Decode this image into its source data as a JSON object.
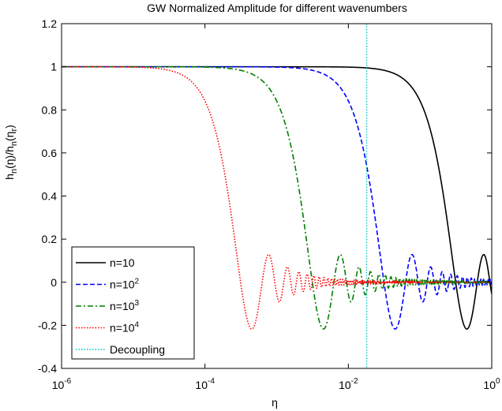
{
  "chart_data": {
    "type": "line",
    "title": "GW Normalized Amplitude for different wavenumbers",
    "xlabel": "η",
    "ylabel": {
      "base": "h",
      "sub1": "n",
      "mid": "(η)/h",
      "sub2": "n",
      "mid2": "(η",
      "sub3": "r",
      "end": ")"
    },
    "x_scale": "log",
    "xlim": [
      1e-06,
      1
    ],
    "ylim": [
      -0.4,
      1.2
    ],
    "x_ticks": [
      {
        "value": 1e-06,
        "base": "10",
        "exp": "-6"
      },
      {
        "value": 0.0001,
        "base": "10",
        "exp": "-4"
      },
      {
        "value": 0.01,
        "base": "10",
        "exp": "-2"
      },
      {
        "value": 1,
        "base": "10",
        "exp": "0"
      }
    ],
    "y_ticks": [
      "-0.4",
      "-0.2",
      "0",
      "0.2",
      "0.4",
      "0.6",
      "0.8",
      "1",
      "1.2"
    ],
    "grid": false,
    "legend_position": "bottom-left",
    "series": [
      {
        "name": "n=10",
        "legend": {
          "text": "n=10"
        },
        "color": "#000000",
        "style": "solid",
        "kind": "wave",
        "k": 10
      },
      {
        "name": "n=10^2",
        "legend": {
          "text": "n=10",
          "sup": "2"
        },
        "color": "#0000ff",
        "style": "dashed",
        "kind": "wave",
        "k": 100
      },
      {
        "name": "n=10^3",
        "legend": {
          "text": "n=10",
          "sup": "3"
        },
        "color": "#007f00",
        "style": "dashdot",
        "kind": "wave",
        "k": 1000
      },
      {
        "name": "n=10^4",
        "legend": {
          "text": "n=10",
          "sup": "4"
        },
        "color": "#ff0000",
        "style": "dotted",
        "kind": "wave",
        "k": 10000
      },
      {
        "name": "Decoupling",
        "legend": {
          "text": "Decoupling"
        },
        "color": "#00bfbf",
        "style": "dotted",
        "kind": "vline",
        "x": 0.018
      }
    ]
  }
}
